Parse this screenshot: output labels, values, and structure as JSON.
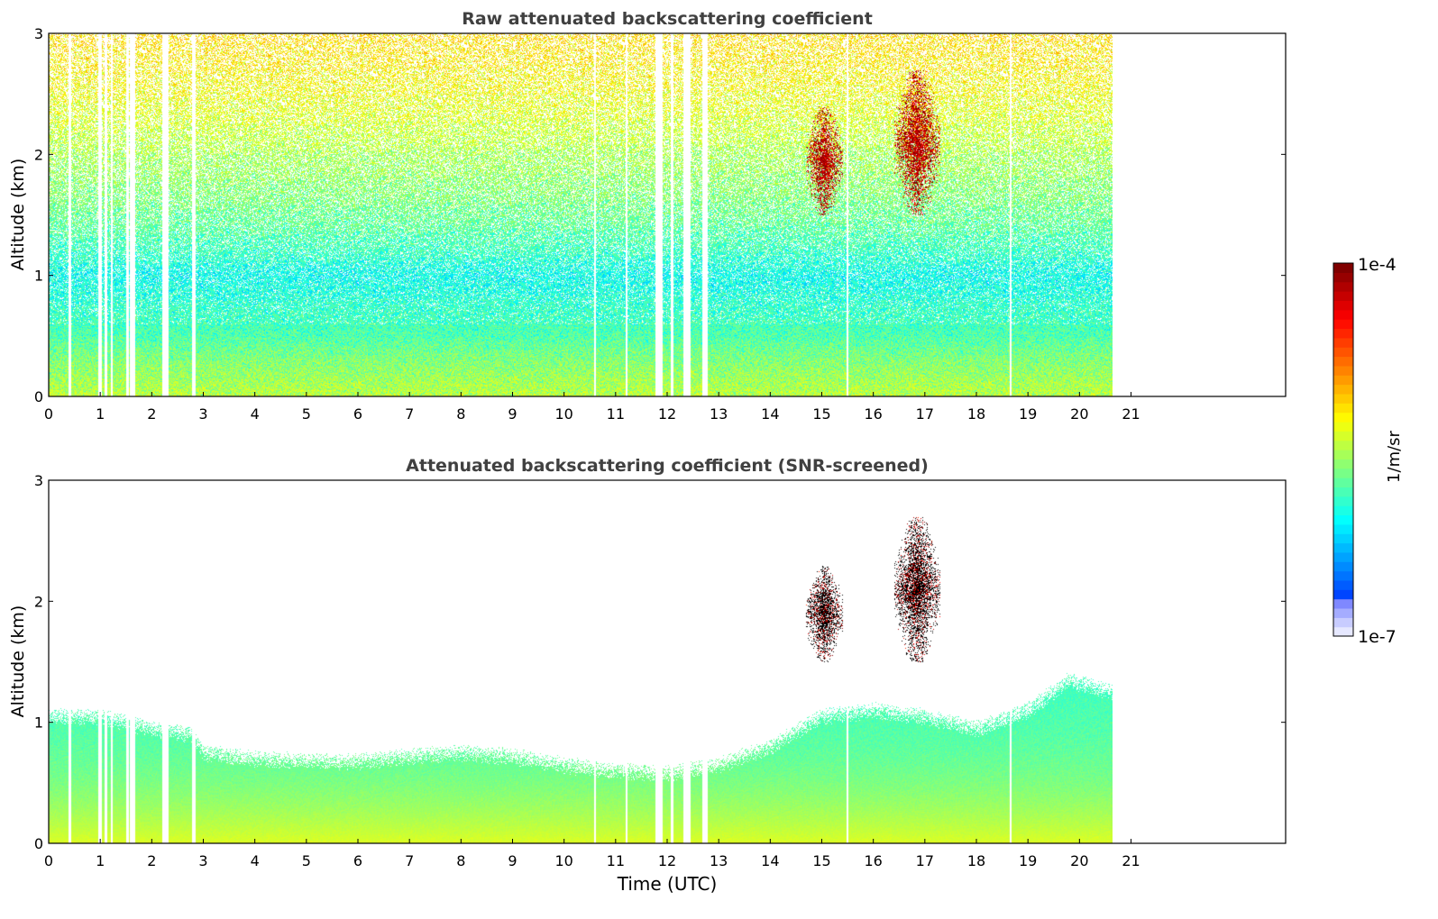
{
  "chart_data": [
    {
      "type": "heatmap",
      "title": "Raw attenuated backscattering coefficient",
      "xlabel": "",
      "ylabel": "Altitude (km)",
      "xlim": [
        0,
        24
      ],
      "ylim": [
        0,
        3
      ],
      "x_ticks": [
        "0",
        "1",
        "2",
        "3",
        "4",
        "5",
        "6",
        "7",
        "8",
        "9",
        "10",
        "11",
        "12",
        "13",
        "14",
        "15",
        "16",
        "17",
        "18",
        "19",
        "20",
        "21"
      ],
      "y_ticks": [
        "0",
        "1",
        "2",
        "3"
      ],
      "data_time_range": [
        0,
        20.65
      ],
      "gaps": [
        [
          0.38,
          0.42
        ],
        [
          0.96,
          1.02
        ],
        [
          1.08,
          1.13
        ],
        [
          1.2,
          1.24
        ],
        [
          1.5,
          1.55
        ],
        [
          1.57,
          1.67
        ],
        [
          2.2,
          2.32
        ],
        [
          2.78,
          2.84
        ],
        [
          10.58,
          10.61
        ],
        [
          11.2,
          11.23
        ],
        [
          11.77,
          11.9
        ],
        [
          12.07,
          12.12
        ],
        [
          12.32,
          12.45
        ],
        [
          12.67,
          12.78
        ],
        [
          15.48,
          15.52
        ],
        [
          18.65,
          18.68
        ]
      ],
      "background_profile_1e7_units": [
        {
          "altitude_km": 0.0,
          "value": 45
        },
        {
          "altitude_km": 0.5,
          "value": 22
        },
        {
          "altitude_km": 1.0,
          "value": 14
        },
        {
          "altitude_km": 2.0,
          "value": 40
        },
        {
          "altitude_km": 3.0,
          "value": 90
        }
      ],
      "cloud_patches": [
        {
          "time_range": [
            14.7,
            15.4
          ],
          "altitude_range_km": [
            1.5,
            2.4
          ],
          "level": "high"
        },
        {
          "time_range": [
            16.4,
            17.3
          ],
          "altitude_range_km": [
            1.5,
            2.7
          ],
          "level": "high"
        }
      ]
    },
    {
      "type": "heatmap",
      "title": "Attenuated backscattering coefficient (SNR-screened)",
      "xlabel": "Time (UTC)",
      "ylabel": "Altitude (km)",
      "xlim": [
        0,
        24
      ],
      "ylim": [
        0,
        3
      ],
      "x_ticks": [
        "0",
        "1",
        "2",
        "3",
        "4",
        "5",
        "6",
        "7",
        "8",
        "9",
        "10",
        "11",
        "12",
        "13",
        "14",
        "15",
        "16",
        "17",
        "18",
        "19",
        "20",
        "21"
      ],
      "y_ticks": [
        "0",
        "1",
        "2",
        "3"
      ],
      "data_time_range": [
        0,
        20.65
      ],
      "boundary_layer_top_km": [
        {
          "time": 0,
          "altitude_km": 1.05
        },
        {
          "time": 1,
          "altitude_km": 1.05
        },
        {
          "time": 2,
          "altitude_km": 0.95
        },
        {
          "time": 2.8,
          "altitude_km": 0.9
        },
        {
          "time": 3,
          "altitude_km": 0.75
        },
        {
          "time": 4,
          "altitude_km": 0.7
        },
        {
          "time": 5,
          "altitude_km": 0.68
        },
        {
          "time": 6,
          "altitude_km": 0.68
        },
        {
          "time": 7,
          "altitude_km": 0.72
        },
        {
          "time": 8,
          "altitude_km": 0.75
        },
        {
          "time": 9,
          "altitude_km": 0.72
        },
        {
          "time": 10,
          "altitude_km": 0.65
        },
        {
          "time": 11,
          "altitude_km": 0.6
        },
        {
          "time": 12,
          "altitude_km": 0.58
        },
        {
          "time": 13,
          "altitude_km": 0.65
        },
        {
          "time": 14,
          "altitude_km": 0.8
        },
        {
          "time": 15,
          "altitude_km": 1.05
        },
        {
          "time": 16,
          "altitude_km": 1.1
        },
        {
          "time": 17,
          "altitude_km": 1.05
        },
        {
          "time": 18,
          "altitude_km": 0.95
        },
        {
          "time": 19,
          "altitude_km": 1.1
        },
        {
          "time": 19.8,
          "altitude_km": 1.35
        },
        {
          "time": 20.65,
          "altitude_km": 1.25
        }
      ],
      "cloud_patches": [
        {
          "time_range": [
            14.7,
            15.4
          ],
          "altitude_range_km": [
            1.5,
            2.3
          ],
          "level": "saturated"
        },
        {
          "time_range": [
            16.4,
            17.3
          ],
          "altitude_range_km": [
            1.5,
            2.7
          ],
          "level": "saturated"
        }
      ]
    }
  ],
  "colorbar": {
    "label": "1/m/sr",
    "max_label": "1e-4",
    "min_label": "1e-7",
    "scale": "log",
    "range": [
      1e-07,
      0.0001
    ],
    "colormap": "jet"
  },
  "colors": {
    "title_text": "#404040",
    "saturated": "#000000"
  }
}
